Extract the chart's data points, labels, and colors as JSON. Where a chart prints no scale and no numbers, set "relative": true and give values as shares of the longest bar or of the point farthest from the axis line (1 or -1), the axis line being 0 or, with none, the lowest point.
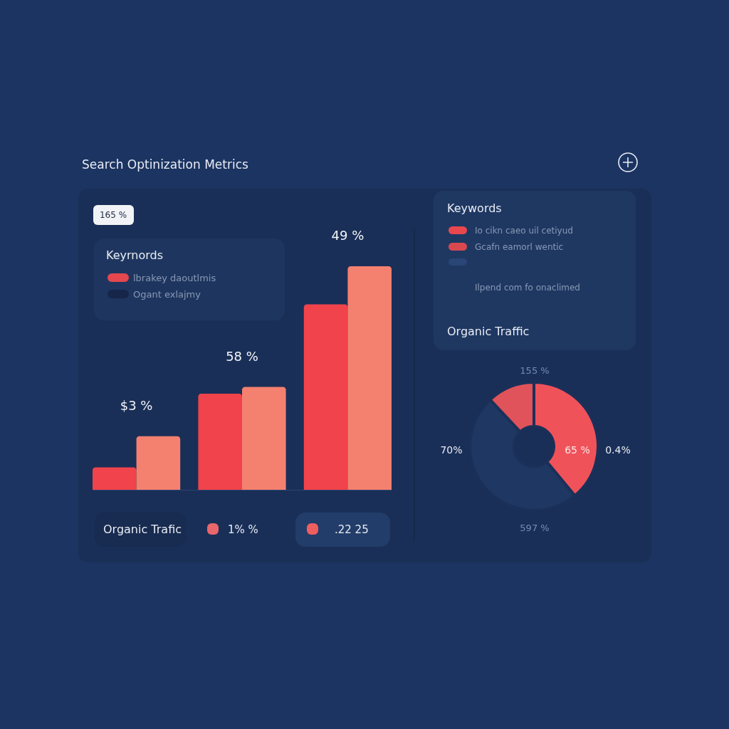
{
  "chart_data": [
    {
      "type": "bar",
      "title": "Search Optinization Metrics",
      "categories": [
        null,
        null,
        null
      ],
      "relative": true,
      "series": [
        {
          "color": "#f0434b",
          "values": [
            0.1,
            0.43,
            0.83
          ]
        },
        {
          "color": "#f4806f",
          "values": [
            0.24,
            0.46,
            1
          ]
        }
      ],
      "annotations": [
        "$3 %",
        "58 %",
        "49 %",
        "165 %",
        "Keyrnords",
        "lbrakey daoutlmis",
        "Ogant exlajmy",
        "Organic Trafic",
        "1% %",
        ".22 25"
      ]
    },
    {
      "type": "donut",
      "categories": [
        null,
        null,
        null
      ],
      "values": [
        39,
        49,
        12
      ],
      "colors": [
        "#f0525a",
        "#1e3763",
        "#e0535a"
      ],
      "annotations": [
        "Keywords",
        "Io cikn caeo uil cetiyud",
        "Gcafn eamorl wentic",
        "Ilpend com fo onaclimed",
        "Organic Traffic",
        "70%",
        "65 %",
        "0.4%",
        "155 %",
        "597 %"
      ]
    }
  ]
}
